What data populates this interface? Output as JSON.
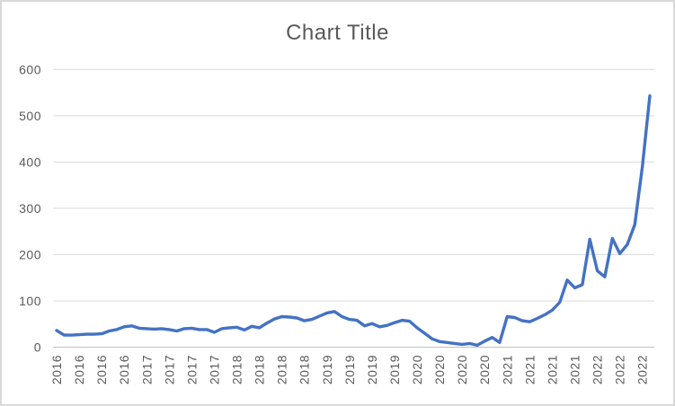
{
  "chart_data": {
    "type": "line",
    "title": "Chart Title",
    "xlabel": "",
    "ylabel": "",
    "legend": "none",
    "grid": true,
    "ylim": [
      0,
      600
    ],
    "yticks": [
      0,
      100,
      200,
      300,
      400,
      500,
      600
    ],
    "ytick_labels": [
      "0",
      "100",
      "200",
      "300",
      "400",
      "500",
      "600"
    ],
    "x_tick_labels": [
      "2016",
      "2016",
      "2016",
      "2016",
      "2017",
      "2017",
      "2017",
      "2017",
      "2018",
      "2018",
      "2018",
      "2018",
      "2019",
      "2019",
      "2019",
      "2019",
      "2020",
      "2020",
      "2020",
      "2020",
      "2021",
      "2021",
      "2021",
      "2021",
      "2022",
      "2022",
      "2022"
    ],
    "points_per_tick": 3,
    "values": [
      36,
      26,
      26,
      27,
      28,
      28,
      29,
      35,
      38,
      44,
      46,
      41,
      40,
      39,
      40,
      38,
      35,
      40,
      41,
      38,
      38,
      32,
      40,
      42,
      43,
      37,
      45,
      42,
      52,
      61,
      66,
      65,
      63,
      57,
      60,
      67,
      74,
      77,
      66,
      60,
      58,
      46,
      51,
      44,
      47,
      53,
      58,
      56,
      42,
      30,
      18,
      12,
      10,
      8,
      6,
      8,
      4,
      13,
      21,
      10,
      66,
      64,
      57,
      55,
      62,
      70,
      80,
      97,
      145,
      128,
      135,
      233,
      165,
      152,
      235,
      202,
      222,
      265,
      390,
      543
    ],
    "colors": {
      "line": "#4472C4",
      "text": "#595959",
      "gridline": "#D9D9D9",
      "axis_line": "#BFBFBF",
      "border": "#D9D9D9",
      "background": "#FFFFFF"
    }
  }
}
